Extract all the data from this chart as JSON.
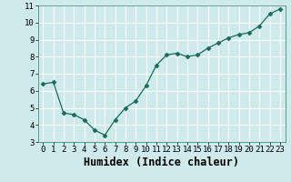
{
  "x": [
    0,
    1,
    2,
    3,
    4,
    5,
    6,
    7,
    8,
    9,
    10,
    11,
    12,
    13,
    14,
    15,
    16,
    17,
    18,
    19,
    20,
    21,
    22,
    23
  ],
  "y": [
    6.4,
    6.5,
    4.7,
    4.6,
    4.3,
    3.7,
    3.4,
    4.3,
    5.0,
    5.4,
    6.3,
    7.5,
    8.1,
    8.2,
    8.0,
    8.1,
    8.5,
    8.8,
    9.1,
    9.3,
    9.4,
    9.8,
    10.5,
    10.8
  ],
  "line_color": "#1a6b5a",
  "marker": "D",
  "marker_size": 2.5,
  "bg_color": "#ceeaea",
  "grid_color": "#ffffff",
  "xlabel": "Humidex (Indice chaleur)",
  "ylabel": "",
  "title": "",
  "xlim": [
    -0.5,
    23.5
  ],
  "ylim": [
    3,
    11
  ],
  "yticks": [
    3,
    4,
    5,
    6,
    7,
    8,
    9,
    10,
    11
  ],
  "xticks": [
    0,
    1,
    2,
    3,
    4,
    5,
    6,
    7,
    8,
    9,
    10,
    11,
    12,
    13,
    14,
    15,
    16,
    17,
    18,
    19,
    20,
    21,
    22,
    23
  ],
  "tick_fontsize": 6.5,
  "xlabel_fontsize": 8.5,
  "line_width": 0.9
}
